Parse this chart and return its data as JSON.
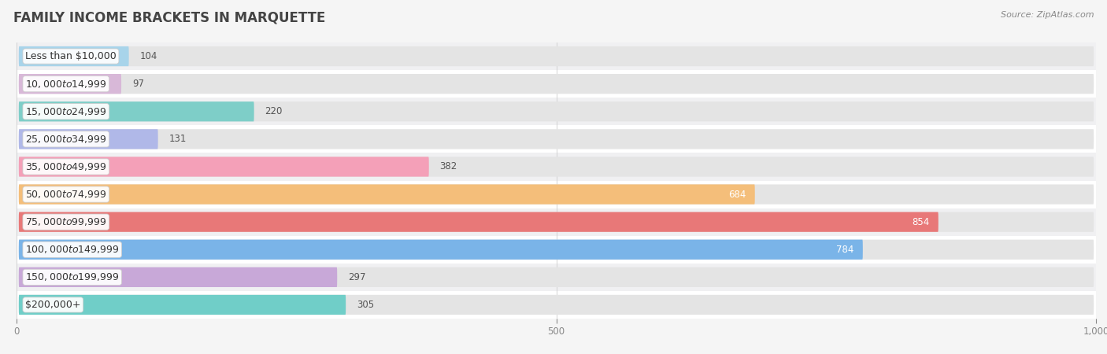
{
  "title": "FAMILY INCOME BRACKETS IN MARQUETTE",
  "source": "Source: ZipAtlas.com",
  "categories": [
    "Less than $10,000",
    "$10,000 to $14,999",
    "$15,000 to $24,999",
    "$25,000 to $34,999",
    "$35,000 to $49,999",
    "$50,000 to $74,999",
    "$75,000 to $99,999",
    "$100,000 to $149,999",
    "$150,000 to $199,999",
    "$200,000+"
  ],
  "values": [
    104,
    97,
    220,
    131,
    382,
    684,
    854,
    784,
    297,
    305
  ],
  "bar_colors": [
    "#a8d4ea",
    "#d8b8d8",
    "#7ecec8",
    "#b0b8e8",
    "#f4a0b8",
    "#f4be7a",
    "#e87878",
    "#7ab4e8",
    "#c8a8d8",
    "#70cec8"
  ],
  "xlim": [
    0,
    1000
  ],
  "xticks": [
    0,
    500,
    1000
  ],
  "bg_color": "#f5f5f5",
  "row_colors": [
    "#ffffff",
    "#f0f0f2"
  ],
  "bar_bg_color": "#e4e4e4",
  "title_fontsize": 12,
  "label_fontsize": 9,
  "value_fontsize": 8.5,
  "source_fontsize": 8
}
